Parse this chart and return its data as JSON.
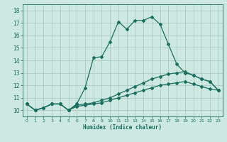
{
  "xlabel": "Humidex (Indice chaleur)",
  "ylabel": "",
  "bg_color": "#cce8e0",
  "grid_color": "#aaccc4",
  "line_color": "#1a6e60",
  "xlim": [
    -0.5,
    23.5
  ],
  "ylim": [
    9.5,
    18.5
  ],
  "xticks": [
    0,
    1,
    2,
    3,
    4,
    5,
    6,
    7,
    8,
    9,
    10,
    11,
    12,
    13,
    14,
    15,
    16,
    17,
    18,
    19,
    20,
    21,
    22,
    23
  ],
  "yticks": [
    10,
    11,
    12,
    13,
    14,
    15,
    16,
    17,
    18
  ],
  "line1_x": [
    0,
    1,
    2,
    3,
    4,
    5,
    6,
    7,
    8,
    9,
    10,
    11,
    12,
    13,
    14,
    15,
    16,
    17,
    18,
    19,
    20,
    21,
    22,
    23
  ],
  "line1_y": [
    10.5,
    10.0,
    10.2,
    10.5,
    10.5,
    10.0,
    10.5,
    11.8,
    14.2,
    14.3,
    15.5,
    17.1,
    16.5,
    17.2,
    17.2,
    17.5,
    16.9,
    15.3,
    13.7,
    13.0,
    12.8,
    12.5,
    12.3,
    11.6
  ],
  "line2_x": [
    0,
    1,
    2,
    3,
    4,
    5,
    6,
    7,
    8,
    9,
    10,
    11,
    12,
    13,
    14,
    15,
    16,
    17,
    18,
    19,
    20,
    21,
    22,
    23
  ],
  "line2_y": [
    10.5,
    10.0,
    10.2,
    10.5,
    10.5,
    10.0,
    10.4,
    10.5,
    10.6,
    10.8,
    11.0,
    11.3,
    11.6,
    11.9,
    12.2,
    12.5,
    12.7,
    12.9,
    13.0,
    13.1,
    12.8,
    12.5,
    12.3,
    11.6
  ],
  "line3_x": [
    0,
    1,
    2,
    3,
    4,
    5,
    6,
    7,
    8,
    9,
    10,
    11,
    12,
    13,
    14,
    15,
    16,
    17,
    18,
    19,
    20,
    21,
    22,
    23
  ],
  "line3_y": [
    10.5,
    10.0,
    10.2,
    10.5,
    10.5,
    10.0,
    10.3,
    10.4,
    10.5,
    10.6,
    10.8,
    11.0,
    11.2,
    11.4,
    11.6,
    11.8,
    12.0,
    12.1,
    12.2,
    12.3,
    12.1,
    11.9,
    11.7,
    11.6
  ],
  "marker": "D",
  "marker_size": 2.0,
  "line_width": 0.9
}
